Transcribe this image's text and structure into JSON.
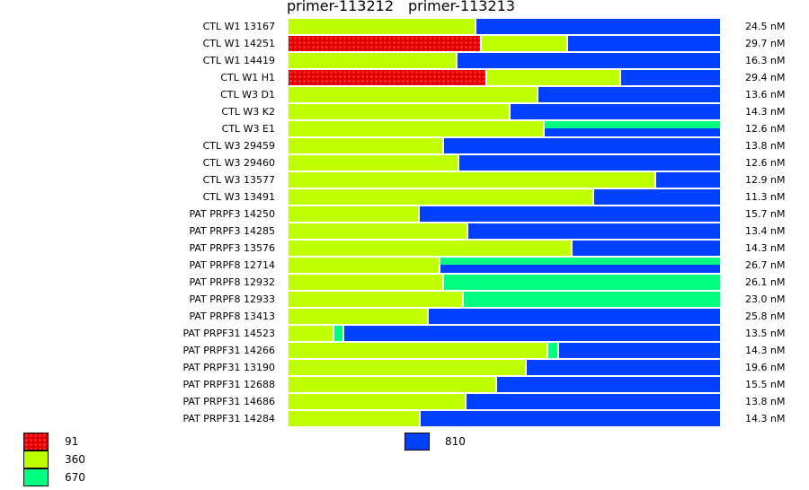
{
  "chart_data": {
    "type": "bar",
    "orientation": "horizontal-stacked-proportion",
    "title": [
      "primer-113212",
      "primer-113213"
    ],
    "colors": {
      "91": "#e00000",
      "360": "#c0ff00",
      "670": "#00ff80",
      "810": "#0040ff"
    },
    "legend": [
      {
        "label": "91",
        "band": "91"
      },
      {
        "label": "360",
        "band": "360"
      },
      {
        "label": "670",
        "band": "670"
      },
      {
        "label": "810",
        "band": "810"
      }
    ],
    "rows": [
      {
        "label": "CTL W1 13167",
        "value": "24.5 nM",
        "segments": [
          [
            "360",
            0.435
          ],
          [
            "810",
            0.565
          ]
        ]
      },
      {
        "label": "CTL W1 14251",
        "value": "29.7 nM",
        "segments": [
          [
            "91",
            0.448
          ],
          [
            "360",
            0.2
          ],
          [
            "810",
            0.352
          ]
        ]
      },
      {
        "label": "CTL W1 14419",
        "value": "16.3 nM",
        "segments": [
          [
            "360",
            0.392
          ],
          [
            "810",
            0.608
          ]
        ]
      },
      {
        "label": "CTL W1 H1",
        "value": "29.4 nM",
        "segments": [
          [
            "91",
            0.46
          ],
          [
            "360",
            0.311
          ],
          [
            "810",
            0.229
          ]
        ]
      },
      {
        "label": "CTL W3 D1",
        "value": "13.6 nM",
        "segments": [
          [
            "360",
            0.579
          ],
          [
            "810",
            0.421
          ]
        ]
      },
      {
        "label": "CTL W3 K2",
        "value": "14.3 nM",
        "segments": [
          [
            "360",
            0.515
          ],
          [
            "810",
            0.485
          ]
        ]
      },
      {
        "label": "CTL W3 E1",
        "value": "12.6 nM",
        "segments": [
          [
            "360",
            0.594
          ],
          [
            "split",
            0.406
          ]
        ]
      },
      {
        "label": "CTL W3 29459",
        "value": "13.8 nM",
        "segments": [
          [
            "360",
            0.36
          ],
          [
            "810",
            0.64
          ]
        ]
      },
      {
        "label": "CTL W3 29460",
        "value": "12.6 nM",
        "segments": [
          [
            "360",
            0.396
          ],
          [
            "810",
            0.604
          ]
        ]
      },
      {
        "label": "CTL W3 13577",
        "value": "12.9 nM",
        "segments": [
          [
            "360",
            0.852
          ],
          [
            "810",
            0.148
          ]
        ]
      },
      {
        "label": "CTL W3 13491",
        "value": "11.3 nM",
        "segments": [
          [
            "360",
            0.708
          ],
          [
            "810",
            0.292
          ]
        ]
      },
      {
        "label": "PAT PRPF3 14250",
        "value": "15.7 nM",
        "segments": [
          [
            "360",
            0.304
          ],
          [
            "810",
            0.696
          ]
        ]
      },
      {
        "label": "PAT PRPF3 14285",
        "value": "13.4 nM",
        "segments": [
          [
            "360",
            0.417
          ],
          [
            "810",
            0.583
          ]
        ]
      },
      {
        "label": "PAT PRPF3 13576",
        "value": "14.3 nM",
        "segments": [
          [
            "360",
            0.658
          ],
          [
            "810",
            0.342
          ]
        ]
      },
      {
        "label": "PAT PRPF8 12714",
        "value": "26.7 nM",
        "segments": [
          [
            "360",
            0.352
          ],
          [
            "split",
            0.648
          ]
        ]
      },
      {
        "label": "PAT PRPF8 12932",
        "value": "26.1 nM",
        "segments": [
          [
            "360",
            0.36
          ],
          [
            "670",
            0.64
          ]
        ]
      },
      {
        "label": "PAT PRPF8 12933",
        "value": "23.0 nM",
        "segments": [
          [
            "360",
            0.406
          ],
          [
            "670",
            0.594
          ]
        ]
      },
      {
        "label": "PAT PRPF8 13413",
        "value": "25.8 nM",
        "segments": [
          [
            "360",
            0.325
          ],
          [
            "810",
            0.675
          ]
        ]
      },
      {
        "label": "PAT PRPF31 14523",
        "value": "13.5 nM",
        "segments": [
          [
            "360",
            0.106
          ],
          [
            "670",
            0.023
          ],
          [
            "810",
            0.871
          ]
        ]
      },
      {
        "label": "PAT PRPF31 14266",
        "value": "14.3 nM",
        "segments": [
          [
            "360",
            0.602
          ],
          [
            "670",
            0.025
          ],
          [
            "810",
            0.373
          ]
        ]
      },
      {
        "label": "PAT PRPF31 13190",
        "value": "19.6 nM",
        "segments": [
          [
            "360",
            0.552
          ],
          [
            "810",
            0.448
          ]
        ]
      },
      {
        "label": "PAT PRPF31 12688",
        "value": "15.5 nM",
        "segments": [
          [
            "360",
            0.483
          ],
          [
            "810",
            0.517
          ]
        ]
      },
      {
        "label": "PAT PRPF31 14686",
        "value": "13.8 nM",
        "segments": [
          [
            "360",
            0.412
          ],
          [
            "810",
            0.588
          ]
        ]
      },
      {
        "label": "PAT PRPF31 14284",
        "value": "14.3 nM",
        "segments": [
          [
            "360",
            0.306
          ],
          [
            "810",
            0.694
          ]
        ]
      }
    ]
  }
}
